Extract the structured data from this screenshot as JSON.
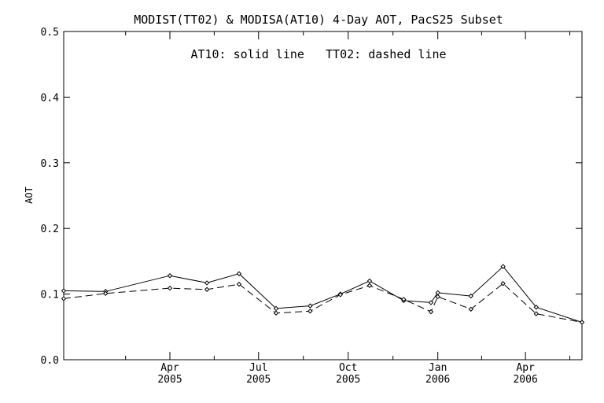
{
  "chart_data": {
    "type": "line",
    "title": "MODIST(TT02) & MODISA(AT10) 4-Day AOT, PacS25 Subset",
    "annotation": "AT10: solid line   TT02: dashed line",
    "ylabel": "AOT",
    "xlabel": "",
    "ylim": [
      0.0,
      0.5
    ],
    "y_ticks": [
      "0.0",
      "0.1",
      "0.2",
      "0.3",
      "0.4",
      "0.5"
    ],
    "x_range": [
      "2004-12-13",
      "2006-05-29"
    ],
    "x_ticks": [
      {
        "date": "2005-04-01",
        "month": "Apr",
        "year": "2005"
      },
      {
        "date": "2005-07-01",
        "month": "Jul",
        "year": "2005"
      },
      {
        "date": "2005-10-01",
        "month": "Oct",
        "year": "2005"
      },
      {
        "date": "2006-01-01",
        "month": "Jan",
        "year": "2006"
      },
      {
        "date": "2006-04-01",
        "month": "Apr",
        "year": "2006"
      }
    ],
    "grid": false,
    "series": [
      {
        "name": "AT10",
        "style": "solid",
        "x": [
          "2004-12-13",
          "2005-01-25",
          "2005-04-01",
          "2005-05-09",
          "2005-06-11",
          "2005-07-19",
          "2005-08-23",
          "2005-09-23",
          "2005-10-23",
          "2005-11-27",
          "2005-12-25",
          "2006-01-01",
          "2006-02-04",
          "2006-03-09",
          "2006-04-12",
          "2006-05-29"
        ],
        "values": [
          0.105,
          0.104,
          0.128,
          0.117,
          0.131,
          0.078,
          0.082,
          0.1,
          0.12,
          0.09,
          0.087,
          0.102,
          0.097,
          0.142,
          0.08,
          0.057
        ]
      },
      {
        "name": "TT02",
        "style": "dashed",
        "x": [
          "2004-12-13",
          "2005-01-25",
          "2005-04-01",
          "2005-05-09",
          "2005-06-11",
          "2005-07-19",
          "2005-08-23",
          "2005-09-23",
          "2005-10-23",
          "2005-11-27",
          "2005-12-25",
          "2006-01-01",
          "2006-02-04",
          "2006-03-09",
          "2006-04-12",
          "2006-05-29"
        ],
        "values": [
          0.093,
          0.101,
          0.109,
          0.107,
          0.115,
          0.071,
          0.074,
          0.099,
          0.113,
          0.092,
          0.073,
          0.096,
          0.077,
          0.116,
          0.07,
          0.057
        ]
      }
    ]
  }
}
